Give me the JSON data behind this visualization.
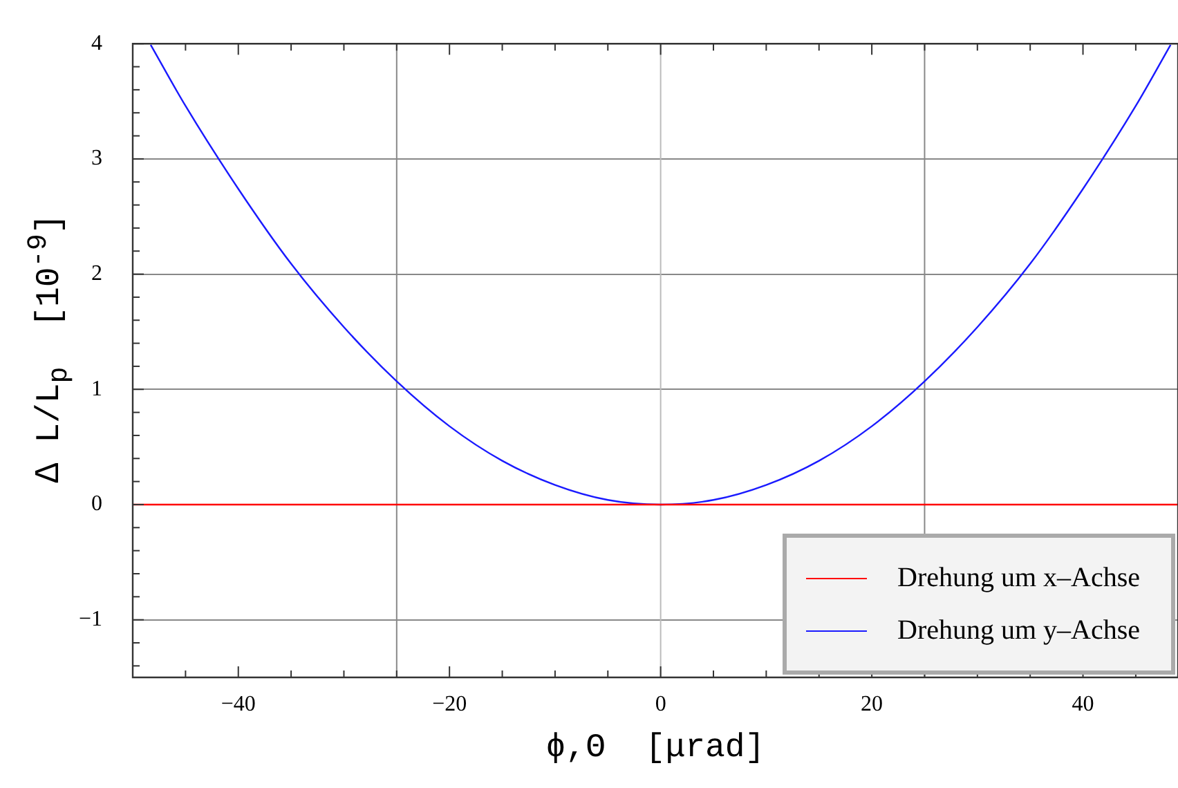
{
  "chart_data": {
    "type": "line",
    "xlabel": "ϕ,Θ  [μrad]",
    "ylabel": "∆ L/L$_{p}$  [10$^{-9}$]",
    "xlim": [
      -50,
      49
    ],
    "ylim": [
      -1.5,
      4
    ],
    "xticks": [
      {
        "value": -50,
        "label": null
      },
      {
        "value": -45,
        "label": null
      },
      {
        "value": -40,
        "label": "−40"
      },
      {
        "value": -35,
        "label": null
      },
      {
        "value": -30,
        "label": null
      },
      {
        "value": -25,
        "label": null
      },
      {
        "value": -20,
        "label": "−20"
      },
      {
        "value": -15,
        "label": null
      },
      {
        "value": -10,
        "label": null
      },
      {
        "value": -5,
        "label": null
      },
      0,
      {
        "value": 5,
        "label": null
      },
      {
        "value": 10,
        "label": null
      },
      {
        "value": 15,
        "label": null
      },
      20,
      {
        "value": 25,
        "label": null
      },
      {
        "value": 30,
        "label": null
      },
      {
        "value": 35,
        "label": null
      },
      40,
      {
        "value": 45,
        "label": null
      }
    ],
    "yticks": [
      {
        "value": -1.4,
        "label": null
      },
      {
        "value": -1.2,
        "label": null
      },
      {
        "value": -1,
        "label": "−1"
      },
      {
        "value": -0.8,
        "label": null
      },
      {
        "value": -0.6,
        "label": null
      },
      {
        "value": -0.4,
        "label": null
      },
      {
        "value": -0.2,
        "label": null
      },
      0,
      {
        "value": 0.2,
        "label": null
      },
      {
        "value": 0.4,
        "label": null
      },
      {
        "value": 0.6,
        "label": null
      },
      {
        "value": 0.8,
        "label": null
      },
      1,
      {
        "value": 1.2,
        "label": null
      },
      {
        "value": 1.4,
        "label": null
      },
      {
        "value": 1.6,
        "label": null
      },
      {
        "value": 1.8,
        "label": null
      },
      2,
      {
        "value": 2.2,
        "label": null
      },
      {
        "value": 2.4,
        "label": null
      },
      {
        "value": 2.6,
        "label": null
      },
      {
        "value": 2.8,
        "label": null
      },
      3,
      {
        "value": 3.2,
        "label": null
      },
      {
        "value": 3.4,
        "label": null
      },
      {
        "value": 3.6,
        "label": null
      },
      {
        "value": 3.8,
        "label": null
      },
      4
    ],
    "grid": "y",
    "legend": "bottom right",
    "ref_lines": [
      {
        "axis": "x",
        "value": -25,
        "color": "#888888"
      },
      {
        "axis": "x",
        "value": 0,
        "color": "#bbbbbb"
      },
      {
        "axis": "x",
        "value": 25,
        "color": "#888888"
      }
    ],
    "series": [
      {
        "name": "Drehung um x–Achse",
        "color": "#ff0000",
        "x": [
          -50,
          49
        ],
        "values": [
          0,
          0
        ]
      },
      {
        "name": "Drehung um y–Achse",
        "color": "#1a1aff",
        "x": [
          -48.3,
          -45,
          -40,
          -35,
          -30,
          -25,
          -20,
          -15,
          -10,
          -5,
          0,
          5,
          10,
          15,
          20,
          25,
          30,
          35,
          40,
          45,
          48.3
        ],
        "values": [
          3.99,
          3.46,
          2.74,
          2.09,
          1.54,
          1.07,
          0.68,
          0.38,
          0.17,
          0.04,
          0,
          0.04,
          0.17,
          0.38,
          0.68,
          1.07,
          1.54,
          2.09,
          2.74,
          3.46,
          3.99
        ]
      }
    ]
  }
}
